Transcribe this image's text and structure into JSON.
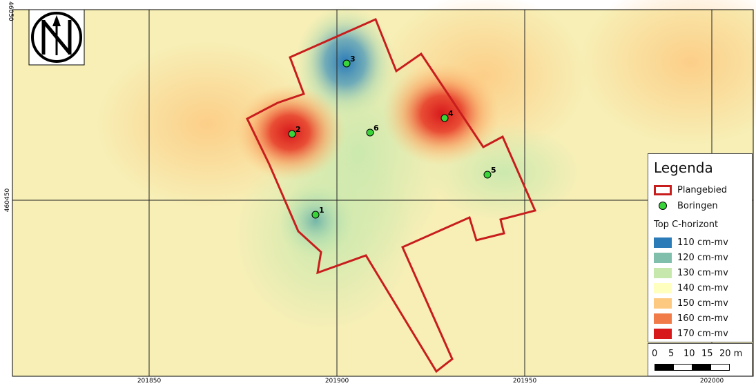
{
  "map": {
    "x_ticks": [
      "201850",
      "201900",
      "201950",
      "202000"
    ],
    "y_ticks": [
      "46050",
      "460450"
    ]
  },
  "boreholes": [
    {
      "label": "1"
    },
    {
      "label": "2"
    },
    {
      "label": "3"
    },
    {
      "label": "4"
    },
    {
      "label": "5"
    },
    {
      "label": "6"
    }
  ],
  "legend": {
    "title": "Legenda",
    "plangebied": "Plangebied",
    "boringen": "Boringen",
    "horizon_title": "Top C-horizont",
    "classes": [
      {
        "label": "110 cm-mv",
        "color": "#2b7bb9"
      },
      {
        "label": "120 cm-mv",
        "color": "#80bfab"
      },
      {
        "label": "130 cm-mv",
        "color": "#c7e8ad"
      },
      {
        "label": "140 cm-mv",
        "color": "#ffffbf"
      },
      {
        "label": "150 cm-mv",
        "color": "#fdc980"
      },
      {
        "label": "160 cm-mv",
        "color": "#f17c4a"
      },
      {
        "label": "170 cm-mv",
        "color": "#d7191c"
      }
    ]
  },
  "scale": {
    "labels": [
      "0",
      "5",
      "10",
      "15",
      "20 m"
    ]
  },
  "colors": {
    "outline": "#c81d1d",
    "point_fill": "#39d439",
    "background": "#f7efb6"
  },
  "icons": {
    "north_arrow": "north-arrow-icon"
  }
}
